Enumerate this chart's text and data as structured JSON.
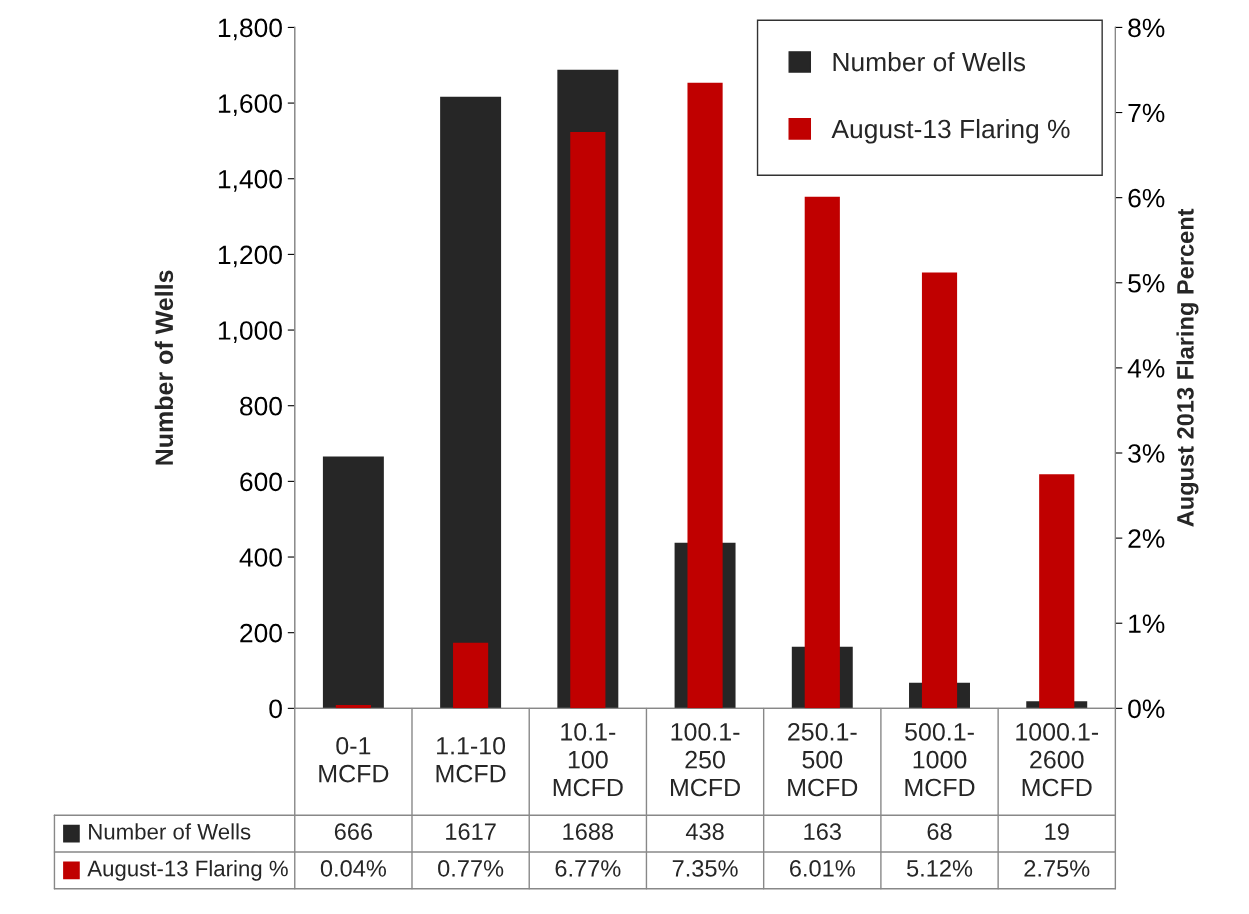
{
  "chart_data": {
    "type": "bar",
    "categories": [
      "0-1\nMCFD",
      "1.1-10\nMCFD",
      "10.1-\n100\nMCFD",
      "100.1-\n250\nMCFD",
      "250.1-\n500\nMCFD",
      "500.1-\n1000\nMCFD",
      "1000.1-\n2600\nMCFD"
    ],
    "series": [
      {
        "name": "Number of Wells",
        "color": "#262626",
        "values": [
          666,
          1617,
          1688,
          438,
          163,
          68,
          19
        ],
        "value_labels": [
          "666",
          "1617",
          "1688",
          "438",
          "163",
          "68",
          "19"
        ]
      },
      {
        "name": "August-13 Flaring %",
        "color": "#c00000",
        "axis": "y2",
        "values": [
          0.04,
          0.77,
          6.77,
          7.35,
          6.01,
          5.12,
          2.75
        ],
        "value_labels": [
          "0.04%",
          "0.77%",
          "6.77%",
          "7.35%",
          "6.01%",
          "5.12%",
          "2.75%"
        ]
      }
    ],
    "ylabel": "Number of Wells",
    "y2label": "August 2013 Flaring Percent",
    "ylim": [
      0,
      1800
    ],
    "yticks": [
      0,
      200,
      400,
      600,
      800,
      {
        "value": 1000,
        "label": "1,000"
      },
      {
        "value": 1200,
        "label": "1,200"
      },
      {
        "value": 1400,
        "label": "1,400"
      },
      {
        "value": 1600,
        "label": "1,600"
      },
      {
        "value": 1800,
        "label": "1,800"
      }
    ],
    "y2lim": [
      0,
      8
    ],
    "y2ticks": [
      {
        "value": 0,
        "label": "0%"
      },
      {
        "value": 1,
        "label": "1%"
      },
      {
        "value": 2,
        "label": "2%"
      },
      {
        "value": 3,
        "label": "3%"
      },
      {
        "value": 4,
        "label": "4%"
      },
      {
        "value": 5,
        "label": "5%"
      },
      {
        "value": 6,
        "label": "6%"
      },
      {
        "value": 7,
        "label": "7%"
      },
      {
        "value": 8,
        "label": "8%"
      }
    ],
    "legend": "top right",
    "grid": false
  }
}
